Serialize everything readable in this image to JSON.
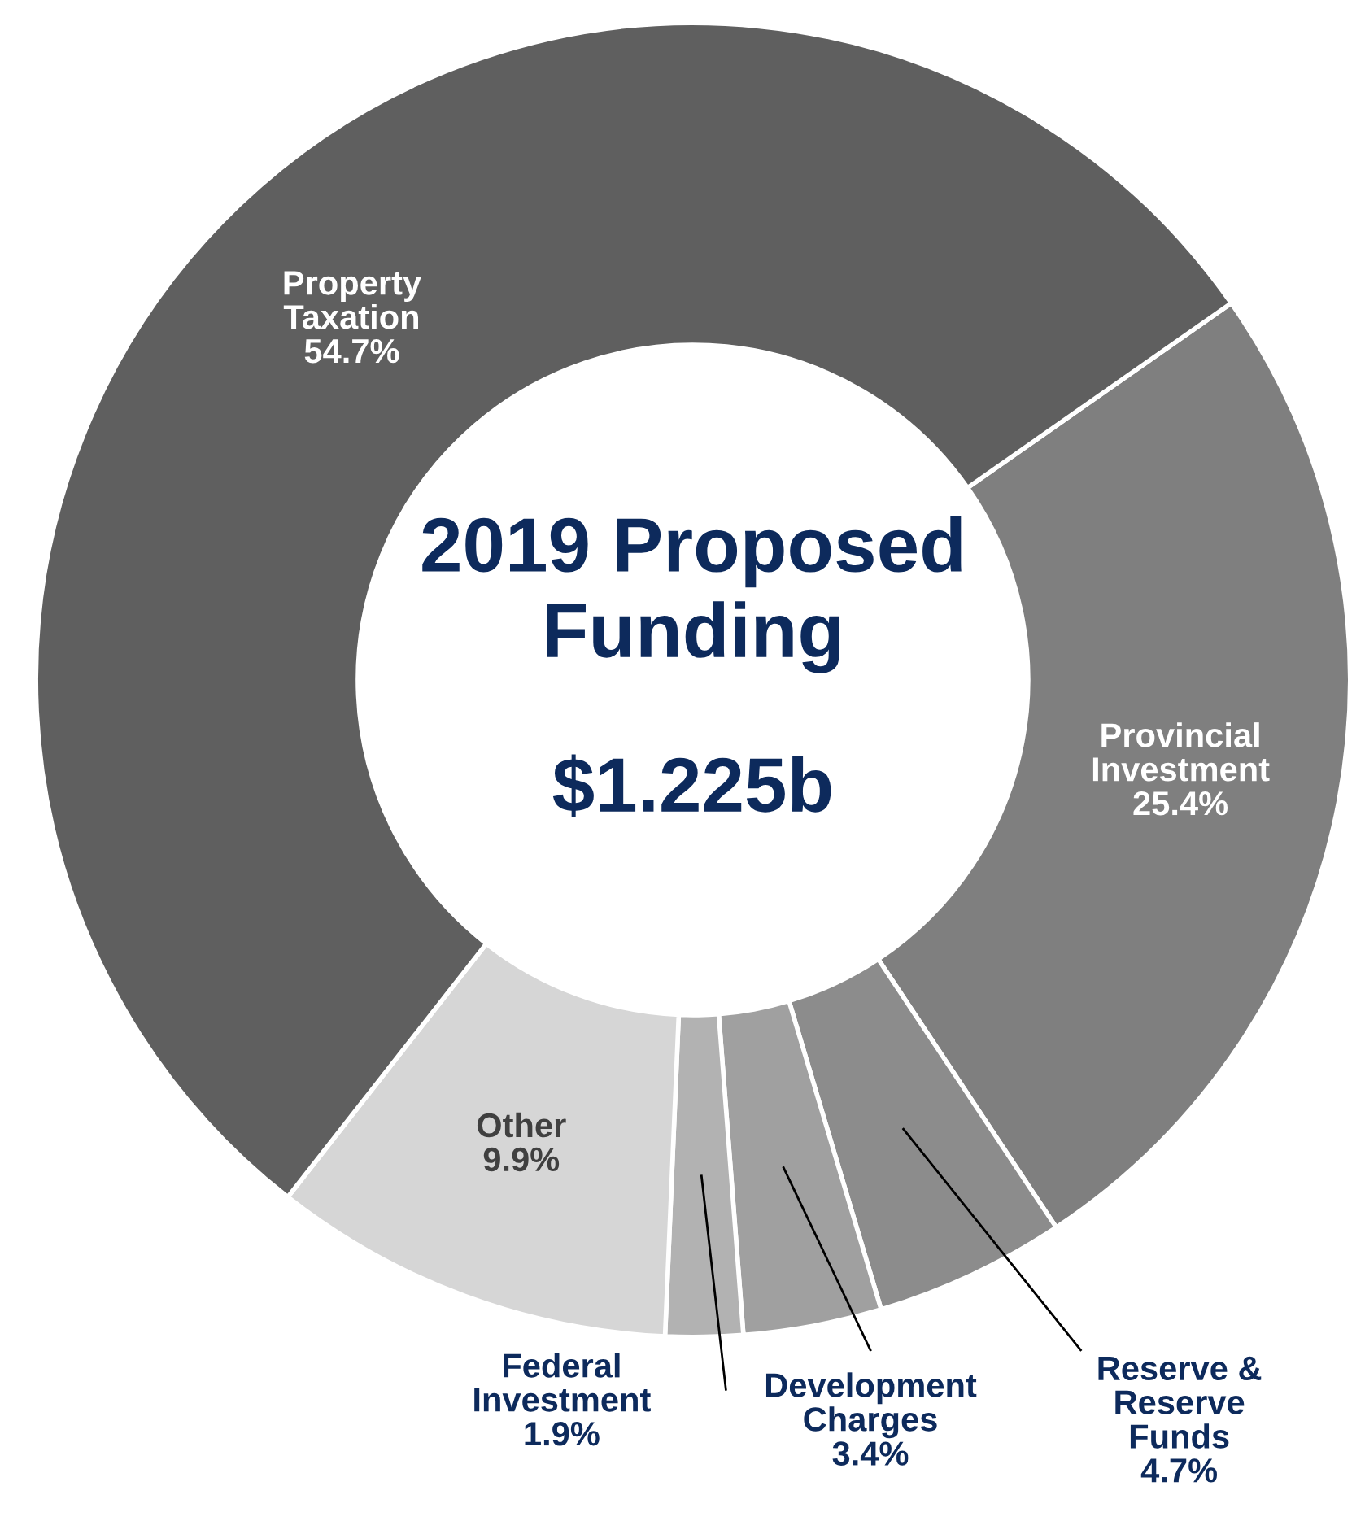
{
  "chart_data": {
    "type": "donut",
    "title": "2019 Proposed\nFunding",
    "subtitle": "$1.225b",
    "categories": [
      "Provincial Investment",
      "Reserve & Reserve Funds",
      "Development Charges",
      "Federal Investment",
      "Other",
      "Property Taxation"
    ],
    "values": [
      25.4,
      4.7,
      3.4,
      1.9,
      9.9,
      54.7
    ],
    "colors": [
      "#7f7f7f",
      "#8c8c8c",
      "#a0a0a0",
      "#b2b2b2",
      "#d6d6d6",
      "#5f5f5f"
    ],
    "value_labels": [
      "25.4%",
      "4.7%",
      "3.4%",
      "1.9%",
      "9.9%",
      "54.7%"
    ],
    "legend": false
  }
}
